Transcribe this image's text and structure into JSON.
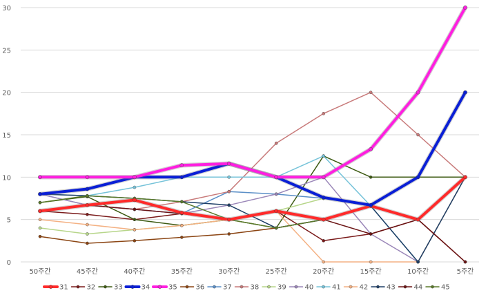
{
  "chart_data": {
    "type": "line",
    "title": "",
    "xlabel": "",
    "ylabel": "",
    "categories": [
      "50주간",
      "45주간",
      "40주간",
      "35주간",
      "30주간",
      "25주간",
      "20주간",
      "15주간",
      "10주간",
      "5주간"
    ],
    "ylim": [
      0,
      30
    ],
    "yticks": [
      0,
      5,
      10,
      15,
      20,
      25,
      30
    ],
    "grid": "horizontal",
    "legend_position": "bottom",
    "series": [
      {
        "name": "31",
        "color": "#ff2a2a",
        "width": "thick",
        "values": [
          6,
          6.7,
          7.3,
          5.8,
          5,
          6,
          5,
          6.6,
          5,
          10
        ]
      },
      {
        "name": "32",
        "color": "#7a1a1a",
        "width": "thin",
        "values": [
          6,
          5.6,
          5,
          5.7,
          5,
          6,
          2.5,
          3.3,
          5,
          0
        ]
      },
      {
        "name": "33",
        "color": "#3d5a12",
        "width": "thin",
        "values": [
          7,
          7.7,
          5,
          4.3,
          5,
          4,
          12.5,
          10,
          10,
          10
        ]
      },
      {
        "name": "34",
        "color": "#0a1fd6",
        "width": "thick",
        "values": [
          8,
          8.6,
          10,
          10,
          11.6,
          10,
          7.6,
          6.7,
          10,
          20
        ]
      },
      {
        "name": "35",
        "color": "#ff1fe0",
        "width": "thick",
        "values": [
          10,
          10,
          10,
          11.4,
          11.6,
          10,
          10,
          13.3,
          20,
          30
        ]
      },
      {
        "name": "36",
        "color": "#8b4513",
        "width": "thin",
        "values": [
          3,
          2.2,
          2.5,
          2.9,
          3.3,
          4,
          5,
          6.6,
          5,
          10
        ]
      },
      {
        "name": "37",
        "color": "#5b8fc7",
        "width": "thin",
        "values": [
          8,
          6.7,
          6.2,
          5.7,
          8.3,
          8,
          7.5,
          6.7,
          5,
          10
        ]
      },
      {
        "name": "38",
        "color": "#c87a7a",
        "width": "thin",
        "values": [
          6,
          6.7,
          6.2,
          7.1,
          8.3,
          14,
          17.5,
          20,
          15,
          10
        ]
      },
      {
        "name": "39",
        "color": "#b7d68a",
        "width": "thin",
        "values": [
          4,
          3.3,
          3.8,
          4.3,
          5,
          6,
          7.5,
          6.6,
          5,
          10
        ]
      },
      {
        "name": "40",
        "color": "#9a86b8",
        "width": "thin",
        "values": [
          8,
          6.7,
          6.2,
          5.7,
          6.7,
          8,
          10,
          3.3,
          0,
          10
        ]
      },
      {
        "name": "41",
        "color": "#76c3d9",
        "width": "thin",
        "values": [
          8,
          7.8,
          8.8,
          10,
          10,
          10,
          12.5,
          6.6,
          0,
          10
        ]
      },
      {
        "name": "42",
        "color": "#f4b183",
        "width": "thin",
        "values": [
          5,
          4.4,
          3.8,
          4.3,
          5,
          6,
          0,
          0,
          0,
          10
        ]
      },
      {
        "name": "43",
        "color": "#1f3f66",
        "width": "thin",
        "values": [
          8,
          7.8,
          7.5,
          7.1,
          6.7,
          4,
          5,
          6.6,
          0,
          10
        ]
      },
      {
        "name": "44",
        "color": "#6b1414",
        "width": "thin",
        "values": [
          6,
          6.7,
          6.2,
          5.7,
          5,
          6,
          5,
          3.3,
          5,
          0
        ]
      },
      {
        "name": "45",
        "color": "#5a7a2a",
        "width": "thin",
        "values": [
          7,
          7.8,
          7.5,
          7.1,
          5,
          4,
          5,
          6.6,
          5,
          10
        ]
      }
    ]
  }
}
